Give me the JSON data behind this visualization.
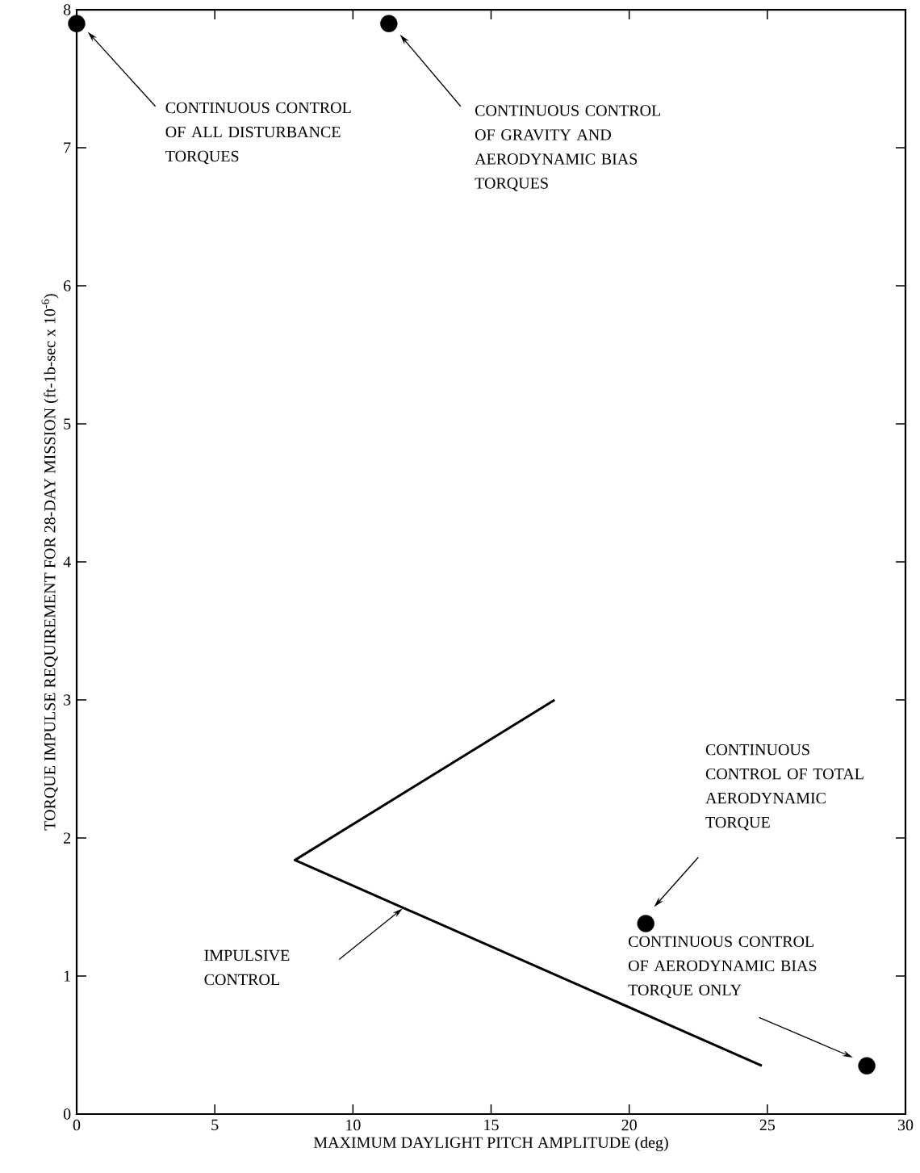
{
  "chart_data": {
    "type": "scatter",
    "xlabel": "MAXIMUM DAYLIGHT PITCH AMPLITUDE (deg)",
    "ylabel": "TORQUE IMPULSE REQUIREMENT FOR 28-DAY MISSION (ft-1b-sec x 10$^{-6}$)",
    "xlim": [
      0,
      30
    ],
    "ylim": [
      0,
      8
    ],
    "xticks": [
      0,
      5,
      10,
      15,
      20,
      25,
      30
    ],
    "yticks": [
      0,
      1,
      2,
      3,
      4,
      5,
      6,
      7,
      8
    ],
    "grid": false,
    "series": [
      {
        "color": "#000000",
        "marker": "circle",
        "x": [
          0,
          11.3,
          20.6,
          28.6
        ],
        "values": [
          7.9,
          7.9,
          1.38,
          0.35
        ]
      },
      {
        "type": "line",
        "color": "#000000",
        "marker": "none",
        "line_style": "solid",
        "x": [
          17.3,
          7.9,
          24.8
        ],
        "values": [
          3.0,
          1.84,
          0.35
        ]
      }
    ],
    "annotations": [
      "CONTINUOUS CONTROL OF ALL DISTURBANCE TORQUES",
      "CONTINUOUS CONTROL OF GRAVITY AND AERODYNAMIC BIAS TORQUES",
      "CONTINUOUS CONTROL OF TOTAL AERODYNAMIC TORQUE",
      "CONTINUOUS CONTROL OF AERODYNAMIC BIAS TORQUE ONLY",
      "IMPULSIVE CONTROL"
    ]
  }
}
